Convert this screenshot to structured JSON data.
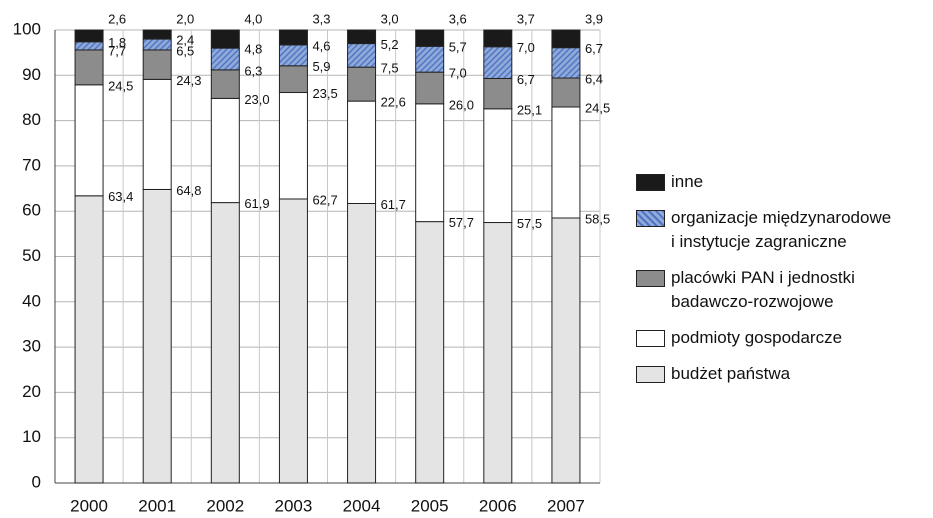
{
  "chart_data": {
    "type": "stacked-bar",
    "categories": [
      "2000",
      "2001",
      "2002",
      "2003",
      "2004",
      "2005",
      "2006",
      "2007"
    ],
    "series": [
      {
        "name": "budżet państwa",
        "color": "#e4e4e4",
        "values": [
          63.4,
          64.8,
          61.9,
          62.7,
          61.7,
          57.7,
          57.5,
          58.5
        ],
        "value_labels": [
          "63,4",
          "64,8",
          "61,9",
          "62,7",
          "61,7",
          "57,7",
          "57,5",
          "58,5"
        ]
      },
      {
        "name": "podmioty gospodarcze",
        "color": "#ffffff",
        "values": [
          24.5,
          24.3,
          23.0,
          23.5,
          22.6,
          26.0,
          25.1,
          24.5
        ],
        "value_labels": [
          "24,5",
          "24,3",
          "23,0",
          "23,5",
          "22,6",
          "26,0",
          "25,1",
          "24,5"
        ]
      },
      {
        "name": "placówki PAN i jednostki\nbadawczo-rozwojowe",
        "color": "#8c8c8c",
        "values": [
          7.7,
          6.5,
          6.3,
          5.9,
          7.5,
          7.0,
          6.7,
          6.4
        ],
        "value_labels": [
          "7,7",
          "6,5",
          "6,3",
          "5,9",
          "7,5",
          "7,0",
          "6,7",
          "6,4"
        ]
      },
      {
        "name": "organizacje międzynarodowe\ni instytucje zagraniczne",
        "color": "#8fa9d9",
        "values": [
          1.8,
          2.4,
          4.8,
          4.6,
          5.2,
          5.7,
          7.0,
          6.7
        ],
        "value_labels": [
          "1,8",
          "2,4",
          "4,8",
          "4,6",
          "5,2",
          "5,7",
          "7,0",
          "6,7"
        ]
      },
      {
        "name": "inne",
        "color": "#1a1a1a",
        "values": [
          2.6,
          2.0,
          4.0,
          3.3,
          3.0,
          3.6,
          3.7,
          3.9
        ],
        "value_labels": [
          "2,6",
          "2,0",
          "4,0",
          "3,3",
          "3,0",
          "3,6",
          "3,7",
          "3,9"
        ]
      }
    ],
    "ylim": [
      0,
      100
    ],
    "yticks": [
      0,
      10,
      20,
      30,
      40,
      50,
      60,
      70,
      80,
      90,
      100
    ],
    "grid": true,
    "legend": "right"
  }
}
